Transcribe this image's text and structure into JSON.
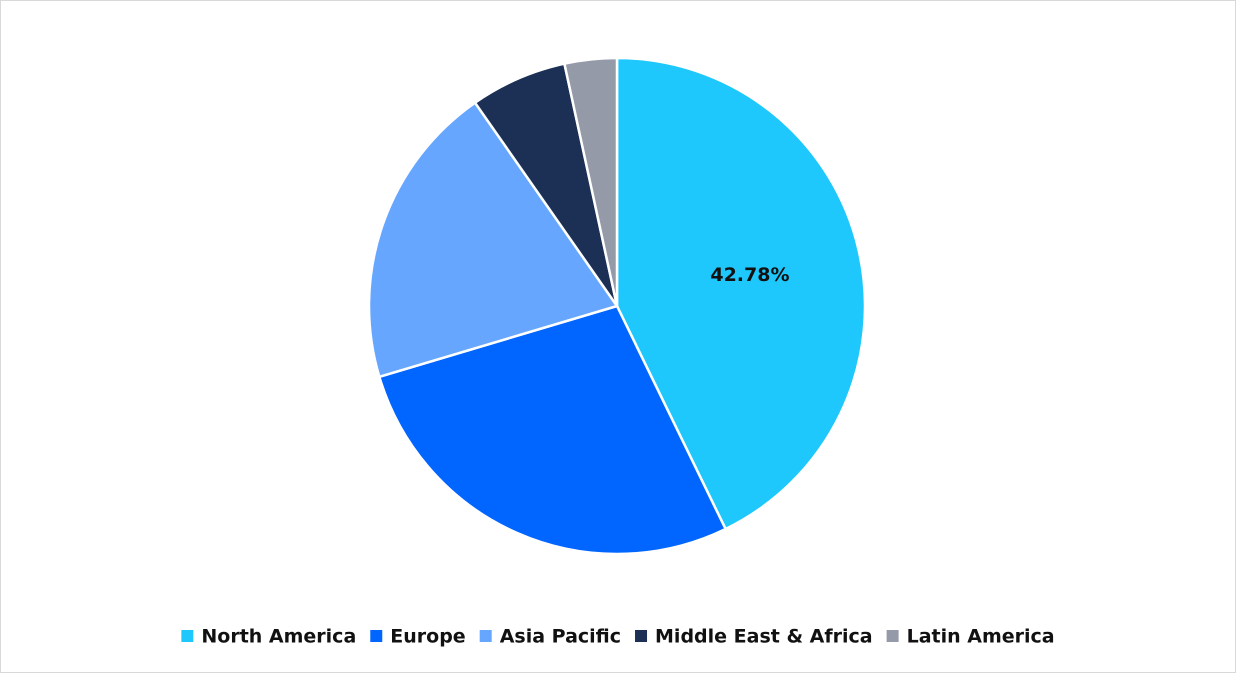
{
  "chart_data": {
    "type": "pie",
    "categories": [
      "North America",
      "Europe",
      "Asia Pacific",
      "Middle East & Africa",
      "Latin America"
    ],
    "values": [
      42.78,
      27.6,
      19.9,
      6.3,
      3.4
    ],
    "value_labels": [
      "42.78%",
      null,
      null,
      null,
      null
    ],
    "colors": [
      "#1ec8fc",
      "#0066ff",
      "#66a6ff",
      "#1c3056",
      "#959aa8"
    ],
    "legend": "bottom"
  }
}
